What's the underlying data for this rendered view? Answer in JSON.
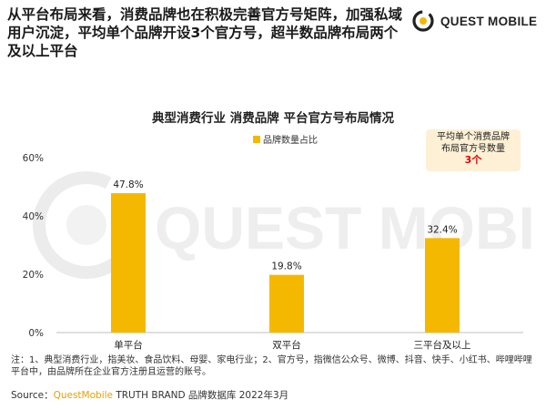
{
  "headline": "从平台布局来看，消费品牌也在积极完善官方号矩阵，加强私域用户沉淀，平均单个品牌开设3个官方号，超半数品牌布局两个及以上平台",
  "logo": {
    "text": "QUEST MOBILE",
    "icon": "quest-mobile-logo-icon"
  },
  "watermark_text": "QUEST MOBILE",
  "callout": {
    "line1": "平均单个消费品牌",
    "line2": "布局官方号数量",
    "value": "3个"
  },
  "colors": {
    "bar": "#f5b800",
    "accent_red": "#e30000",
    "callout_bg": "#fdf0d5",
    "source_brand": "#e6a100"
  },
  "chart_data": {
    "type": "bar",
    "title": "典型消费行业 消费品牌 平台官方号布局情况",
    "legend": [
      "品牌数量占比"
    ],
    "legend_position": "top",
    "categories": [
      "单平台",
      "双平台",
      "三平台及以上"
    ],
    "series": [
      {
        "name": "品牌数量占比",
        "values": [
          47.8,
          19.8,
          32.4
        ]
      }
    ],
    "value_labels": [
      "47.8%",
      "19.8%",
      "32.4%"
    ],
    "yticks": [
      "0%",
      "20%",
      "40%",
      "60%"
    ],
    "ylim": [
      0,
      60
    ],
    "grid": false
  },
  "notes": "注：1、典型消费行业，指美妆、食品饮料、母婴、家电行业；2、官方号，指微信公众号、微博、抖音、快手、小红书、哔哩哔哩平台中，由品牌所在企业官方注册且运营的账号。",
  "source": {
    "prefix": "Source：",
    "brand": "QuestMobile",
    "rest": " TRUTH BRAND 品牌数据库 2022年3月"
  }
}
